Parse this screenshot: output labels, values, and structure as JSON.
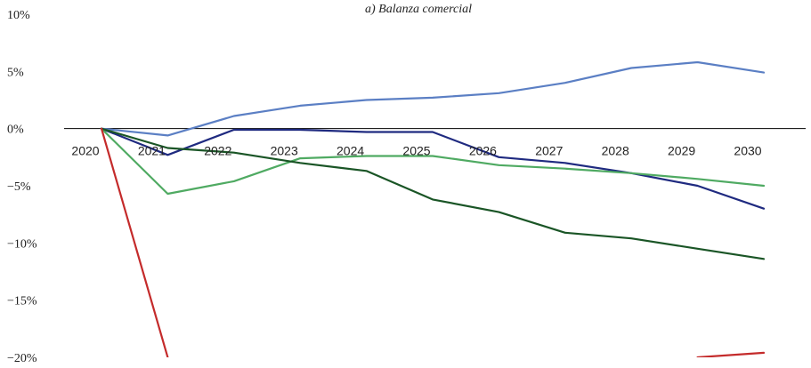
{
  "chart_data": {
    "type": "line",
    "title": "a) Balanza comercial",
    "xlabel": "",
    "ylabel": "",
    "ylim": [
      -20,
      10
    ],
    "y_ticks": [
      10,
      5,
      0,
      -5,
      -10,
      -15,
      -20
    ],
    "y_tick_labels": [
      "10%",
      "5%",
      "0%",
      "−5%",
      "−10%",
      "−15%",
      "−20%"
    ],
    "categories": [
      "2020",
      "2021",
      "2022",
      "2023",
      "2024",
      "2025",
      "2026",
      "2027",
      "2028",
      "2029",
      "2030"
    ],
    "legend": "none",
    "grid": false,
    "series": [
      {
        "color": "#5b7fc4",
        "values": [
          0.0,
          -0.6,
          1.1,
          2.0,
          2.5,
          2.7,
          3.1,
          4.0,
          5.3,
          5.8,
          4.9
        ]
      },
      {
        "color": "#1f2a80",
        "values": [
          0.0,
          -2.3,
          -0.1,
          -0.1,
          -0.3,
          -0.3,
          -2.5,
          -3.0,
          -3.9,
          -5.0,
          -7.0
        ]
      },
      {
        "color": "#4faa62",
        "values": [
          0.0,
          -5.7,
          -4.6,
          -2.6,
          -2.4,
          -2.4,
          -3.2,
          -3.5,
          -3.9,
          -4.4,
          -5.0
        ]
      },
      {
        "color": "#1a5526",
        "values": [
          0.0,
          -1.7,
          -2.1,
          -3.0,
          -3.7,
          -6.2,
          -7.3,
          -9.1,
          -9.6,
          -10.5,
          -11.4
        ]
      },
      {
        "color": "#c42b2b",
        "values": [
          0.0,
          -20.0,
          null,
          null,
          null,
          null,
          null,
          null,
          null,
          -20.0,
          -19.6
        ]
      }
    ]
  }
}
